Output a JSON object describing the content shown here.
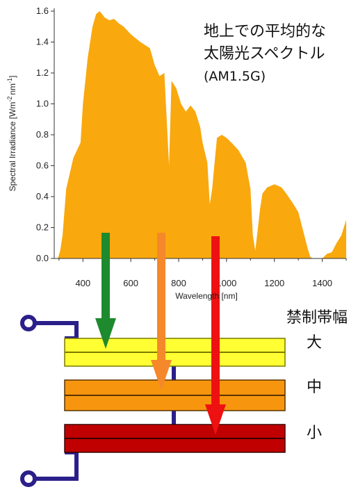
{
  "chart_data": {
    "type": "area",
    "title_lines": [
      "地上での平均的な",
      "太陽光スペクトル",
      "(AM1.5G)"
    ],
    "xlabel": "Wavelength [nm]",
    "ylabel": "Spectral Irradiance [Wm",
    "ylabel_exp1": "-2",
    "ylabel_mid": "nm",
    "ylabel_exp2": "-1",
    "ylabel_end": "]",
    "xlim": [
      280,
      1500
    ],
    "ylim": [
      0,
      1.6
    ],
    "x_ticks": [
      "400",
      "600",
      "800",
      "1000",
      "1200",
      "1400"
    ],
    "x_tick_values": [
      400,
      600,
      800,
      1000,
      1200,
      1400
    ],
    "y_ticks": [
      "0.0",
      "0.2",
      "0.4",
      "0.6",
      "0.8",
      "1.0",
      "1.2",
      "1.4",
      "1.6"
    ],
    "y_tick_values": [
      0,
      0.2,
      0.4,
      0.6,
      0.8,
      1.0,
      1.2,
      1.4,
      1.6
    ],
    "fill_color": "#f9a80e",
    "x": [
      280,
      295,
      305,
      315,
      330,
      345,
      360,
      375,
      390,
      400,
      420,
      440,
      455,
      470,
      490,
      510,
      530,
      550,
      570,
      600,
      640,
      680,
      700,
      720,
      740,
      760,
      770,
      790,
      810,
      830,
      850,
      870,
      890,
      900,
      920,
      930,
      940,
      950,
      960,
      980,
      1000,
      1020,
      1050,
      1080,
      1100,
      1110,
      1120,
      1130,
      1140,
      1150,
      1170,
      1200,
      1230,
      1250,
      1280,
      1300,
      1320,
      1340,
      1350,
      1360,
      1380,
      1400,
      1420,
      1440,
      1460,
      1480,
      1500
    ],
    "y": [
      0,
      0,
      0.05,
      0.15,
      0.45,
      0.55,
      0.65,
      0.7,
      0.75,
      1.0,
      1.3,
      1.5,
      1.58,
      1.6,
      1.56,
      1.54,
      1.55,
      1.52,
      1.5,
      1.45,
      1.4,
      1.36,
      1.25,
      1.18,
      1.2,
      0.6,
      1.15,
      1.1,
      1.0,
      0.95,
      0.99,
      0.95,
      0.85,
      0.75,
      0.62,
      0.35,
      0.45,
      0.62,
      0.78,
      0.8,
      0.78,
      0.75,
      0.7,
      0.62,
      0.45,
      0.15,
      0.05,
      0.18,
      0.32,
      0.42,
      0.46,
      0.48,
      0.46,
      0.42,
      0.35,
      0.3,
      0.18,
      0.06,
      0.01,
      0,
      0,
      0,
      0.03,
      0.04,
      0.1,
      0.15,
      0.25
    ]
  },
  "diagram": {
    "band_gap_label": "禁制帯幅",
    "layers": [
      {
        "label": "大",
        "color": "#ffff33",
        "line_color": "#7a7a00"
      },
      {
        "label": "中",
        "color": "#f7960e",
        "line_color": "#5a3200"
      },
      {
        "label": "小",
        "color": "#c00000",
        "line_color": "#3a0000"
      }
    ],
    "arrows": [
      {
        "color": "#1e8a2e",
        "x_nm": 455
      },
      {
        "color": "#f5882a",
        "x_nm": 700
      },
      {
        "color": "#ee1111",
        "x_nm": 940
      }
    ],
    "wire_color": "#2b1f8a"
  }
}
